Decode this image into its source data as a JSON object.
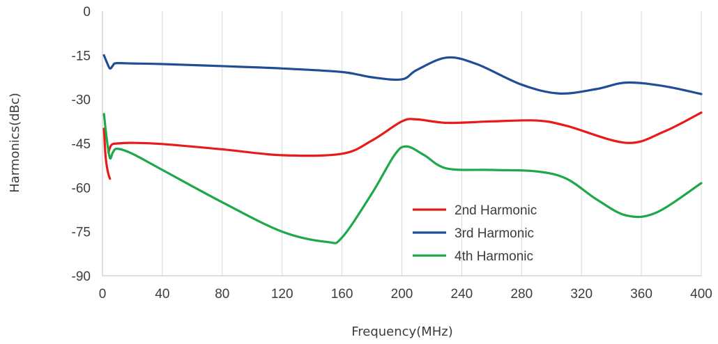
{
  "chart_data": {
    "type": "line",
    "xlabel": "Frequency(MHz)",
    "ylabel": "Harmonics(dBc)",
    "xlim": [
      0,
      400
    ],
    "ylim": [
      -90,
      0
    ],
    "x_ticks": [
      0,
      40,
      80,
      120,
      160,
      200,
      240,
      280,
      320,
      360,
      400
    ],
    "y_ticks": [
      0,
      -15,
      -30,
      -45,
      -60,
      -75,
      -90
    ],
    "grid": "vertical",
    "legend": "lower-center",
    "series": [
      {
        "name": "2nd Harmonic",
        "color": "#e81a1a",
        "segments": [
          {
            "x": [
              1,
              2,
              3,
              4,
              5
            ],
            "y": [
              -40,
              -49,
              -53,
              -55.5,
              -57
            ]
          },
          {
            "x": [
              4,
              6,
              10,
              20,
              40,
              80,
              120,
              160,
              180,
              200,
              210,
              230,
              260,
              290,
              310,
              350,
              375,
              400
            ],
            "y": [
              -48,
              -45.5,
              -45,
              -44.8,
              -45.2,
              -47,
              -49,
              -48.5,
              -44,
              -37.5,
              -36.8,
              -38,
              -37.5,
              -37.2,
              -39,
              -44.8,
              -41,
              -34.5
            ]
          }
        ]
      },
      {
        "name": "3rd Harmonic",
        "color": "#1f4e96",
        "segments": [
          {
            "x": [
              1,
              3,
              5,
              7,
              9,
              20,
              40,
              80,
              120,
              160,
              180,
              200,
              210,
              230,
              250,
              280,
              305,
              330,
              350,
              375,
              400
            ],
            "y": [
              -15,
              -17.5,
              -19.5,
              -18.5,
              -17.7,
              -17.8,
              -18,
              -18.7,
              -19.5,
              -20.7,
              -22.5,
              -23.2,
              -20,
              -15.8,
              -18,
              -25,
              -28,
              -26.5,
              -24.3,
              -25.5,
              -28.2
            ]
          }
        ]
      },
      {
        "name": "4th Harmonic",
        "color": "#1ea84a",
        "segments": [
          {
            "x": [
              1,
              3,
              5,
              7,
              10,
              20,
              40,
              80,
              120,
              150,
              160,
              180,
              195,
              203,
              215,
              230,
              260,
              290,
              310,
              330,
              350,
              370,
              400
            ],
            "y": [
              -35,
              -44,
              -50,
              -48,
              -46.8,
              -48.5,
              -54,
              -65,
              -75,
              -78.5,
              -77,
              -62,
              -49,
              -46,
              -49,
              -53.5,
              -54,
              -54.5,
              -57,
              -64,
              -69.5,
              -68.5,
              -58.5
            ]
          }
        ]
      }
    ]
  }
}
